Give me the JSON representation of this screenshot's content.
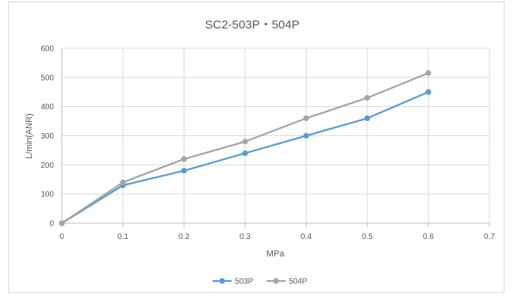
{
  "chart_data": {
    "type": "scatter",
    "title": "SC2-503P・504P",
    "xlabel": "MPa",
    "ylabel": "L/min(ANR)",
    "xlim": [
      0,
      0.7
    ],
    "ylim": [
      0,
      600
    ],
    "x_ticks": [
      "0",
      "0.1",
      "0.2",
      "0.3",
      "0.4",
      "0.5",
      "0.6",
      "0.7"
    ],
    "y_ticks": [
      "0",
      "100",
      "200",
      "300",
      "400",
      "500",
      "600"
    ],
    "grid": true,
    "legend_position": "bottom",
    "series": [
      {
        "name": "503P",
        "color": "#5b9bd5",
        "x": [
          0,
          0.1,
          0.2,
          0.3,
          0.4,
          0.5,
          0.6
        ],
        "y": [
          0,
          130,
          180,
          240,
          300,
          360,
          450
        ]
      },
      {
        "name": "504P",
        "color": "#a5a5a5",
        "x": [
          0,
          0.1,
          0.2,
          0.3,
          0.4,
          0.5,
          0.6
        ],
        "y": [
          0,
          140,
          220,
          280,
          360,
          430,
          515
        ]
      }
    ]
  }
}
